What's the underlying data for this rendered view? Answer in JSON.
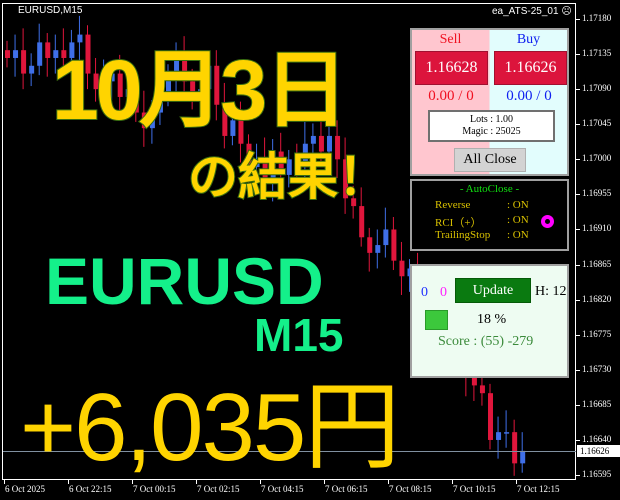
{
  "chart": {
    "symbol_timeframe": "EURUSD,M15",
    "ea_name": "ea_ATS-25_01",
    "ea_status_icon": "frown-face-icon",
    "price_axis": [
      "1.17180",
      "1.17135",
      "1.17090",
      "1.17045",
      "1.17000",
      "1.16955",
      "1.16910",
      "1.16865",
      "1.16820",
      "1.16775",
      "1.16730",
      "1.16685",
      "1.16640",
      "1.16595"
    ],
    "current_price": "1.16626",
    "time_axis": [
      "6 Oct 2025",
      "6 Oct 22:15",
      "7 Oct 00:15",
      "7 Oct 02:15",
      "7 Oct 04:15",
      "7 Oct 06:15",
      "7 Oct 08:15",
      "7 Oct 10:15",
      "7 Oct 12:15"
    ],
    "colors": {
      "bull": "#3f6fe8",
      "bear": "#e0163c",
      "background": "#000000"
    },
    "closes": [
      1.1713,
      1.1714,
      1.1711,
      1.1712,
      1.1715,
      1.1713,
      1.1714,
      1.1713,
      1.1715,
      1.1716,
      1.1711,
      1.1709,
      1.171,
      1.1711,
      1.1708,
      1.1709,
      1.1706,
      1.1704,
      1.1706,
      1.1708,
      1.1711,
      1.1713,
      1.171,
      1.1708,
      1.1709,
      1.1712,
      1.1707,
      1.1703,
      1.1705,
      1.1702,
      1.1699,
      1.17,
      1.1697,
      1.1701,
      1.1698,
      1.17,
      1.1699,
      1.1702,
      1.1703,
      1.1701,
      1.1703,
      1.17,
      1.1695,
      1.1694,
      1.169,
      1.1688,
      1.1689,
      1.1691,
      1.1687,
      1.1685,
      1.1686,
      1.1683,
      1.1681,
      1.1679,
      1.1676,
      1.1678,
      1.1674,
      1.1672,
      1.1671,
      1.167,
      1.1664,
      1.1665,
      1.1665,
      1.1661,
      1.16626
    ]
  },
  "overlay": {
    "date": "10月3日",
    "result": "の結果！",
    "pair": "EURUSD",
    "timeframe": "M15",
    "profit": "+6,035円"
  },
  "trade_panel": {
    "sell_label": "Sell",
    "buy_label": "Buy",
    "sell_price": "1.16628",
    "buy_price": "1.16626",
    "sell_pl": "0.00 / 0",
    "buy_pl": "0.00 / 0",
    "lots": "Lots   : 1.00",
    "magic": "Magic : 25025",
    "all_close": "All Close"
  },
  "autoclose_panel": {
    "title": "- AutoClose -",
    "rows": [
      {
        "label": "Reverse",
        "value": ": ON"
      },
      {
        "label": "RCI（+）",
        "value": ": ON"
      },
      {
        "label": "TrailingStop",
        "value": ": ON"
      }
    ],
    "indicator_color": "#ff00ff"
  },
  "stats_panel": {
    "count_blue": "0",
    "count_magenta": "0",
    "update_label": "Update",
    "h_label": "H: 12",
    "percent": "18 %",
    "score": "Score : (55) -279"
  }
}
